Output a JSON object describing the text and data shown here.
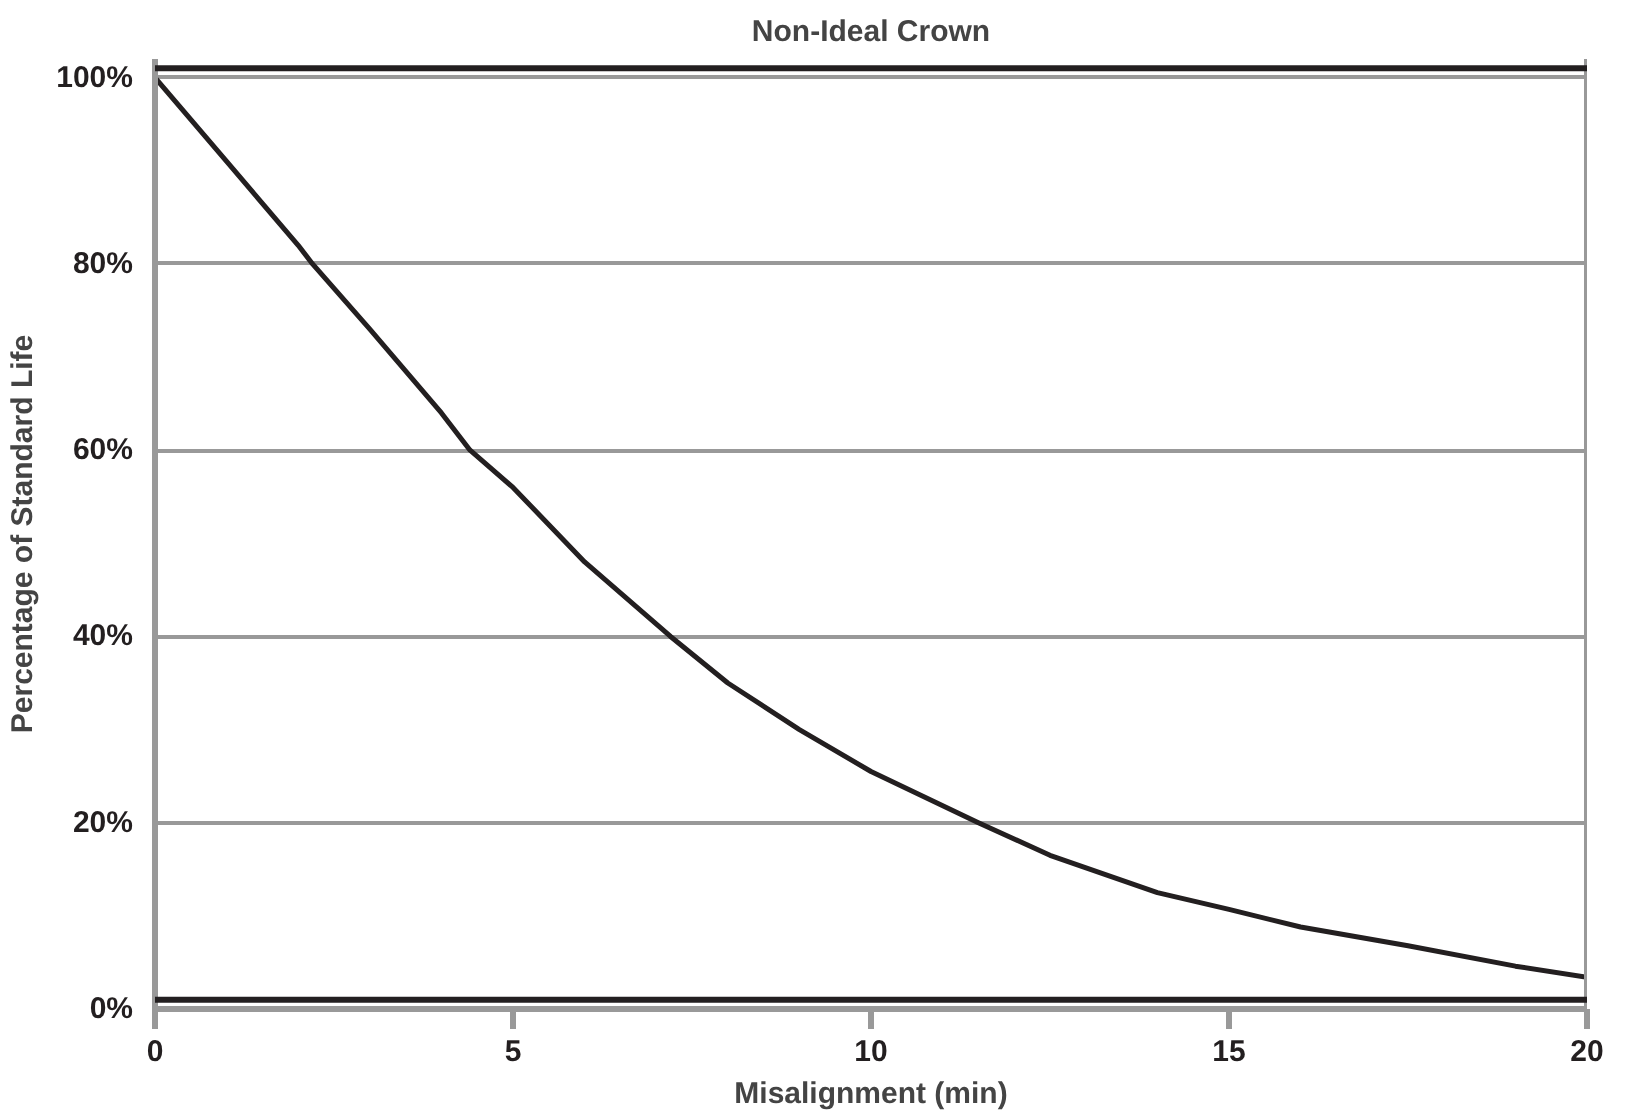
{
  "chart_data": {
    "type": "line",
    "title": "Non-Ideal Crown",
    "xlabel": "Misalignment (min)",
    "ylabel": "Percentage of Standard Life",
    "x": [
      0,
      1,
      2,
      2.2,
      3,
      4,
      4.4,
      5,
      6,
      7.2,
      8,
      9,
      10,
      11.5,
      12.5,
      14,
      15,
      16,
      17.5,
      19,
      20
    ],
    "series": [
      {
        "color": "#231f20",
        "values": [
          100,
          91,
          82,
          80,
          73,
          64,
          60,
          56,
          48,
          40,
          35,
          30,
          25.5,
          20,
          16.5,
          12.5,
          10.7,
          8.8,
          6.8,
          4.6,
          3.4
        ]
      }
    ],
    "xlim": [
      0,
      20
    ],
    "xticks": [
      0,
      5,
      10,
      15,
      20
    ],
    "ylim": [
      0,
      102
    ],
    "yticks": [
      {
        "value": 0,
        "label": "0%"
      },
      {
        "value": 20,
        "label": "20%"
      },
      {
        "value": 40,
        "label": "40%"
      },
      {
        "value": 60,
        "label": "60%"
      },
      {
        "value": 80,
        "label": "80%"
      },
      {
        "value": 100,
        "label": "100%"
      }
    ],
    "grid": "y",
    "marker": "none",
    "line_style": "solid",
    "ref_lines": [
      {
        "axis": "y",
        "value": 101,
        "color": "#231f20"
      },
      {
        "axis": "y",
        "value": 1,
        "color": "#231f20"
      }
    ]
  }
}
